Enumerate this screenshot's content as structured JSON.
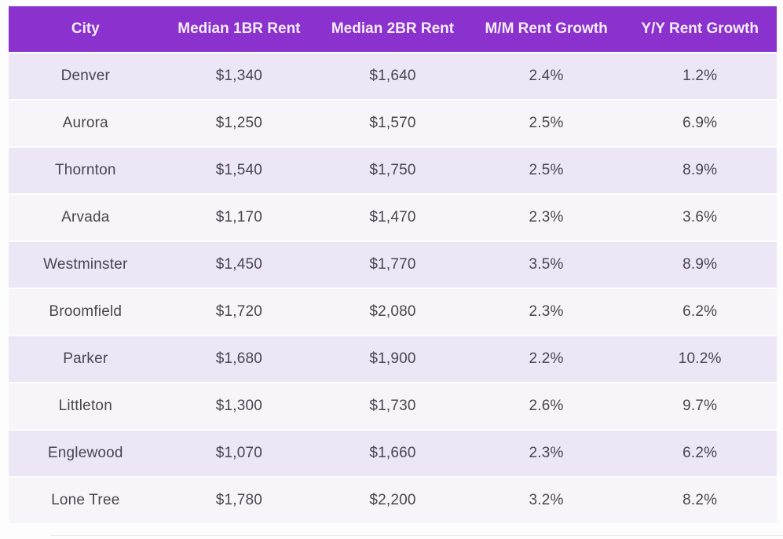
{
  "chart_data": {
    "type": "table",
    "columns": [
      "City",
      "Median 1BR Rent",
      "Median 2BR Rent",
      "M/M Rent Growth",
      "Y/Y Rent Growth"
    ],
    "rows": [
      [
        "Denver",
        "$1,340",
        "$1,640",
        "2.4%",
        "1.2%"
      ],
      [
        "Aurora",
        "$1,250",
        "$1,570",
        "2.5%",
        "6.9%"
      ],
      [
        "Thornton",
        "$1,540",
        "$1,750",
        "2.5%",
        "8.9%"
      ],
      [
        "Arvada",
        "$1,170",
        "$1,470",
        "2.3%",
        "3.6%"
      ],
      [
        "Westminster",
        "$1,450",
        "$1,770",
        "3.5%",
        "8.9%"
      ],
      [
        "Broomfield",
        "$1,720",
        "$2,080",
        "2.3%",
        "6.2%"
      ],
      [
        "Parker",
        "$1,680",
        "$1,900",
        "2.2%",
        "10.2%"
      ],
      [
        "Littleton",
        "$1,300",
        "$1,730",
        "2.6%",
        "9.7%"
      ],
      [
        "Englewood",
        "$1,070",
        "$1,660",
        "2.3%",
        "6.2%"
      ],
      [
        "Lone Tree",
        "$1,780",
        "$2,200",
        "3.2%",
        "8.2%"
      ]
    ],
    "layout": {
      "header_position": "top",
      "striped": true,
      "text_align": "center"
    }
  },
  "colors": {
    "header_bg": "#8A31CE",
    "header_text": "#F5EDFC",
    "row_odd_bg": "#EDE6F6",
    "row_even_bg": "#F8F5FA",
    "cell_text": "#4A4550",
    "page_bg": "#FDFDFD"
  }
}
